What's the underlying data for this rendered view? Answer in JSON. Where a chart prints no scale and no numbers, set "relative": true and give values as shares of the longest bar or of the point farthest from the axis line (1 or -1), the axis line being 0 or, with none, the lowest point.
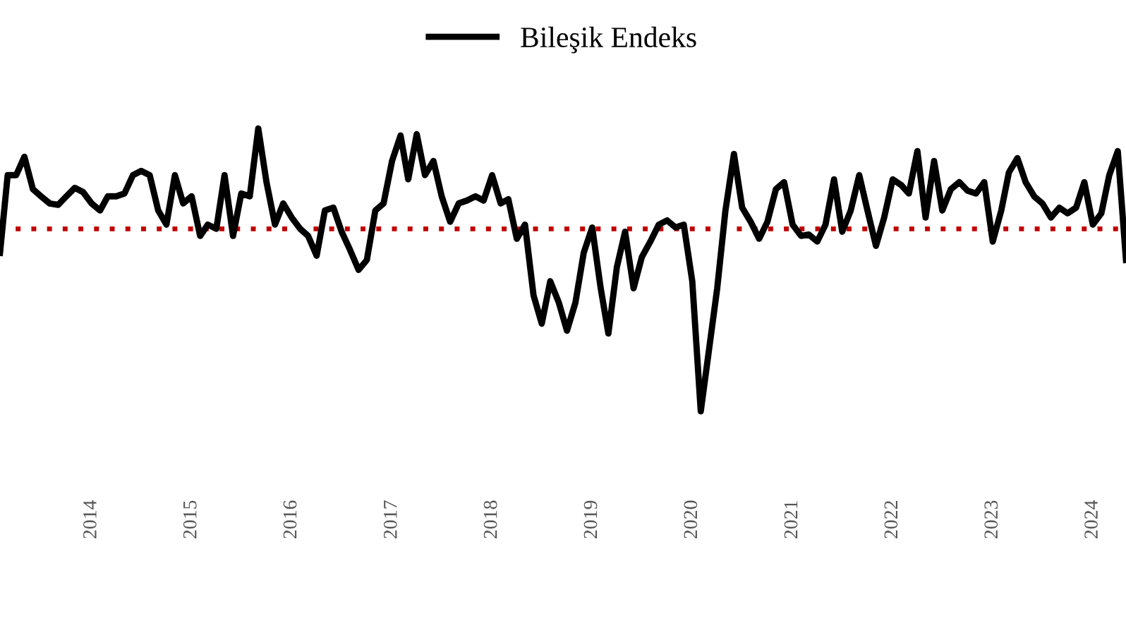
{
  "chart_data": {
    "type": "line",
    "relative": true,
    "x": [
      "2013-02",
      "2013-03",
      "2013-04",
      "2013-05",
      "2013-06",
      "2013-07",
      "2013-08",
      "2013-09",
      "2013-10",
      "2013-11",
      "2013-12",
      "2014-01",
      "2014-02",
      "2014-03",
      "2014-04",
      "2014-05",
      "2014-06",
      "2014-07",
      "2014-08",
      "2014-09",
      "2014-10",
      "2014-11",
      "2014-12",
      "2015-01",
      "2015-02",
      "2015-03",
      "2015-04",
      "2015-05",
      "2015-06",
      "2015-07",
      "2015-08",
      "2015-09",
      "2015-10",
      "2015-11",
      "2015-12",
      "2016-01",
      "2016-02",
      "2016-03",
      "2016-04",
      "2016-05",
      "2016-06",
      "2016-07",
      "2016-08",
      "2016-09",
      "2016-10",
      "2016-11",
      "2016-12",
      "2017-01",
      "2017-02",
      "2017-03",
      "2017-04",
      "2017-05",
      "2017-06",
      "2017-07",
      "2017-08",
      "2017-09",
      "2017-10",
      "2017-11",
      "2017-12",
      "2018-01",
      "2018-02",
      "2018-03",
      "2018-04",
      "2018-05",
      "2018-06",
      "2018-07",
      "2018-08",
      "2018-09",
      "2018-10",
      "2018-11",
      "2018-12",
      "2019-01",
      "2019-02",
      "2019-03",
      "2019-04",
      "2019-05",
      "2019-06",
      "2019-07",
      "2019-08",
      "2019-09",
      "2019-10",
      "2019-11",
      "2019-12",
      "2020-01",
      "2020-02",
      "2020-03",
      "2020-04",
      "2020-05",
      "2020-06",
      "2020-07",
      "2020-08",
      "2020-09",
      "2020-10",
      "2020-11",
      "2020-12",
      "2021-01",
      "2021-02",
      "2021-03",
      "2021-04",
      "2021-05",
      "2021-06",
      "2021-07",
      "2021-08",
      "2021-09",
      "2021-10",
      "2021-11",
      "2021-12",
      "2022-01",
      "2022-02",
      "2022-03",
      "2022-04",
      "2022-05",
      "2022-06",
      "2022-07",
      "2022-08",
      "2022-09",
      "2022-10",
      "2022-11",
      "2022-12",
      "2023-01",
      "2023-02",
      "2023-03",
      "2023-04",
      "2023-05",
      "2023-06",
      "2023-07",
      "2023-08",
      "2023-09",
      "2023-10",
      "2023-11",
      "2023-12",
      "2024-01",
      "2024-02",
      "2024-03",
      "2024-04",
      "2024-05"
    ],
    "series": [
      {
        "name": "Bileşik Endeks",
        "color": "#000000",
        "values": [
          0.56,
          0.835,
          0.835,
          0.9,
          0.785,
          0.76,
          0.735,
          0.73,
          0.76,
          0.79,
          0.775,
          0.735,
          0.71,
          0.76,
          0.76,
          0.77,
          0.835,
          0.85,
          0.835,
          0.71,
          0.66,
          0.835,
          0.735,
          0.76,
          0.62,
          0.66,
          0.645,
          0.835,
          0.62,
          0.77,
          0.76,
          1,
          0.81,
          0.66,
          0.735,
          0.685,
          0.645,
          0.62,
          0.55,
          0.71,
          0.72,
          0.635,
          0.57,
          0.5,
          0.535,
          0.71,
          0.735,
          0.885,
          0.975,
          0.82,
          0.98,
          0.835,
          0.885,
          0.76,
          0.67,
          0.735,
          0.745,
          0.76,
          0.745,
          0.835,
          0.735,
          0.75,
          0.61,
          0.66,
          0.41,
          0.31,
          0.46,
          0.385,
          0.285,
          0.385,
          0.56,
          0.65,
          0.435,
          0.275,
          0.51,
          0.635,
          0.435,
          0.545,
          0.6,
          0.66,
          0.675,
          0.65,
          0.66,
          0.46,
          0,
          0.21,
          0.435,
          0.71,
          0.91,
          0.72,
          0.67,
          0.61,
          0.67,
          0.785,
          0.81,
          0.66,
          0.62,
          0.625,
          0.6,
          0.66,
          0.82,
          0.635,
          0.71,
          0.835,
          0.71,
          0.585,
          0.685,
          0.82,
          0.8,
          0.77,
          0.92,
          0.685,
          0.885,
          0.71,
          0.785,
          0.81,
          0.78,
          0.77,
          0.81,
          0.6,
          0.71,
          0.845,
          0.895,
          0.81,
          0.76,
          0.735,
          0.685,
          0.72,
          0.7,
          0.72,
          0.81,
          0.66,
          0.7,
          0.835,
          0.92,
          0.535
        ]
      }
    ],
    "xlim": [
      "2013-02",
      "2024-05"
    ],
    "xticks": [
      "2014",
      "2015",
      "2016",
      "2017",
      "2018",
      "2019",
      "2020",
      "2021",
      "2022",
      "2023",
      "2024"
    ],
    "ref_lines": [
      {
        "axis": "y",
        "value": 0.645,
        "color": "#c00000",
        "line_style": "dotted"
      }
    ],
    "legend": "top",
    "grid": false,
    "marker": "none",
    "line_style": "solid"
  }
}
